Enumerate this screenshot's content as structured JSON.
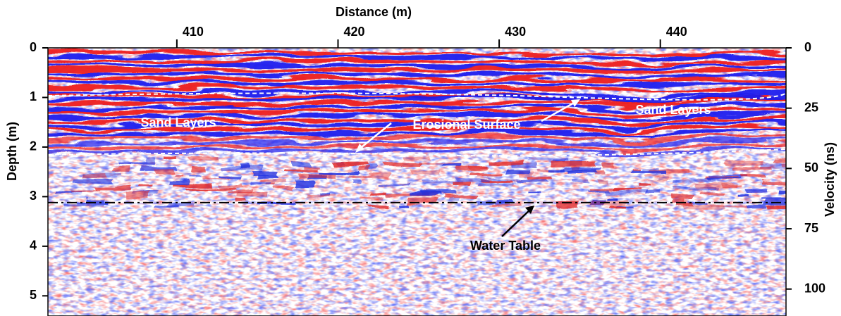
{
  "chart_data": {
    "type": "radargram",
    "xlabel": "Distance (m)",
    "ylabel": "Depth (m)",
    "y2label": "Velocity (ns)",
    "xlim": [
      402,
      447.8
    ],
    "xticks": [
      410,
      420,
      430,
      440
    ],
    "ylim": [
      0,
      5.35
    ],
    "yticks": [
      0,
      1,
      2,
      3,
      4,
      5
    ],
    "y2lim": [
      0,
      110
    ],
    "y2ticks": [
      0,
      25,
      50,
      75,
      100
    ],
    "water_table_depth": 3.12,
    "annotations": [
      "Sand Layers",
      "Erosional Surface",
      "Sand Layers",
      "Water Table"
    ]
  }
}
